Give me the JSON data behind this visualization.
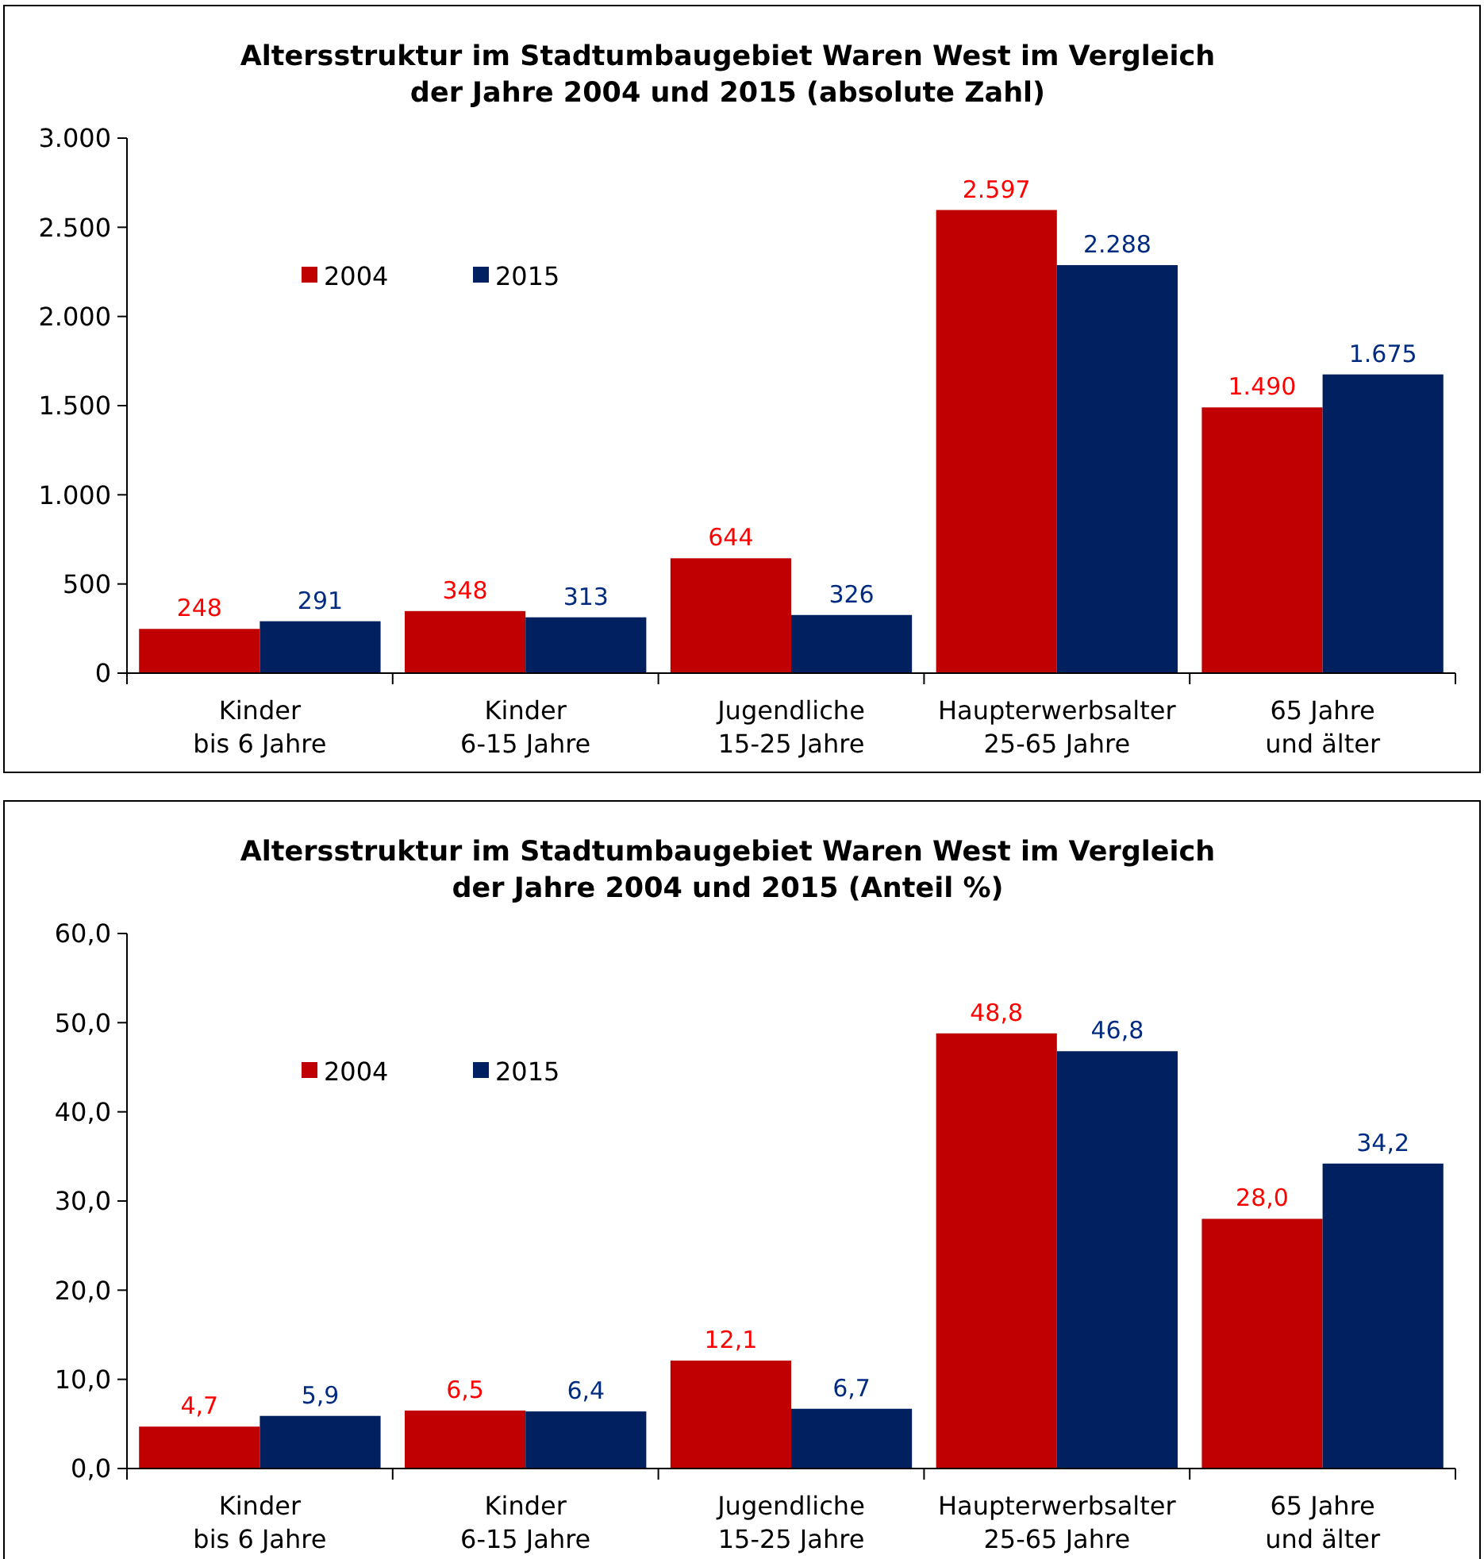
{
  "chart_data": [
    {
      "type": "bar",
      "title": "Altersstruktur im Stadtumbaugebiet Waren West im Vergleich der Jahre 2004 und 2015 (absolute Zahl)",
      "categories": [
        "Kinder\nbis 6 Jahre",
        "Kinder\n6-15 Jahre",
        "Jugendliche\n15-25 Jahre",
        "Haupterwerbsalter\n25-65 Jahre",
        "65 Jahre\nund älter"
      ],
      "series": [
        {
          "name": "2004",
          "color": "#c00000",
          "values": [
            248,
            348,
            644,
            2597,
            1490
          ],
          "value_labels": [
            "248",
            "348",
            "644",
            "2.597",
            "1.490"
          ]
        },
        {
          "name": "2015",
          "color": "#002060",
          "values": [
            291,
            313,
            326,
            2288,
            1675
          ],
          "value_labels": [
            "291",
            "313",
            "326",
            "2.288",
            "1.675"
          ]
        }
      ],
      "ylim": [
        0,
        3000
      ],
      "yticks": [
        0,
        500,
        {
          "value": 1000,
          "label": "1.000"
        },
        {
          "value": 1500,
          "label": "1.500"
        },
        {
          "value": 2000,
          "label": "2.000"
        },
        {
          "value": 2500,
          "label": "2.500"
        },
        {
          "value": 3000,
          "label": "3.000"
        }
      ],
      "legend": "top left",
      "grid": false
    },
    {
      "type": "bar",
      "title": "Altersstruktur im Stadtumbaugebiet Waren West im Vergleich der Jahre 2004 und 2015 (Anteil %)",
      "categories": [
        "Kinder\nbis 6 Jahre",
        "Kinder\n6-15 Jahre",
        "Jugendliche\n15-25 Jahre",
        "Haupterwerbsalter\n25-65 Jahre",
        "65 Jahre\nund älter"
      ],
      "series": [
        {
          "name": "2004",
          "color": "#c00000",
          "values": [
            4.7,
            6.5,
            12.1,
            48.8,
            28.0
          ],
          "value_labels": [
            "4,7",
            "6,5",
            "12,1",
            "48,8",
            "28,0"
          ]
        },
        {
          "name": "2015",
          "color": "#002060",
          "values": [
            5.9,
            6.4,
            6.7,
            46.8,
            34.2
          ],
          "value_labels": [
            "5,9",
            "6,4",
            "6,7",
            "46,8",
            "34,2"
          ]
        }
      ],
      "ylim": [
        0,
        60
      ],
      "yticks": [
        {
          "value": 0,
          "label": "0,0"
        },
        {
          "value": 10,
          "label": "10,0"
        },
        {
          "value": 20,
          "label": "20,0"
        },
        {
          "value": 30,
          "label": "30,0"
        },
        {
          "value": 40,
          "label": "40,0"
        },
        {
          "value": 50,
          "label": "50,0"
        },
        {
          "value": 60,
          "label": "60,0"
        }
      ],
      "legend": "top left",
      "grid": false
    }
  ]
}
